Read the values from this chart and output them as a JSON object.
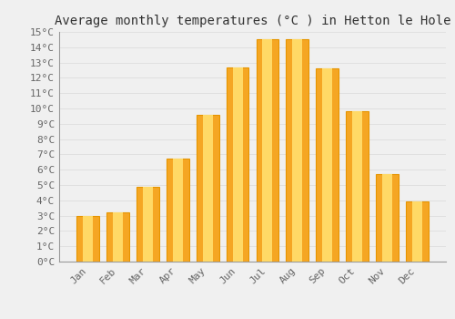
{
  "title": "Average monthly temperatures (°C ) in Hetton le Hole",
  "months": [
    "Jan",
    "Feb",
    "Mar",
    "Apr",
    "May",
    "Jun",
    "Jul",
    "Aug",
    "Sep",
    "Oct",
    "Nov",
    "Dec"
  ],
  "values": [
    3.0,
    3.2,
    4.9,
    6.7,
    9.6,
    12.7,
    14.5,
    14.5,
    12.6,
    9.8,
    5.7,
    3.9
  ],
  "bar_color_light": "#FFD966",
  "bar_color_dark": "#F5A623",
  "bar_color_edge": "#E69500",
  "background_color": "#F0F0F0",
  "grid_color": "#DDDDDD",
  "title_fontsize": 10,
  "tick_fontsize": 8,
  "ylim": [
    0,
    15
  ],
  "yticks": [
    0,
    1,
    2,
    3,
    4,
    5,
    6,
    7,
    8,
    9,
    10,
    11,
    12,
    13,
    14,
    15
  ]
}
